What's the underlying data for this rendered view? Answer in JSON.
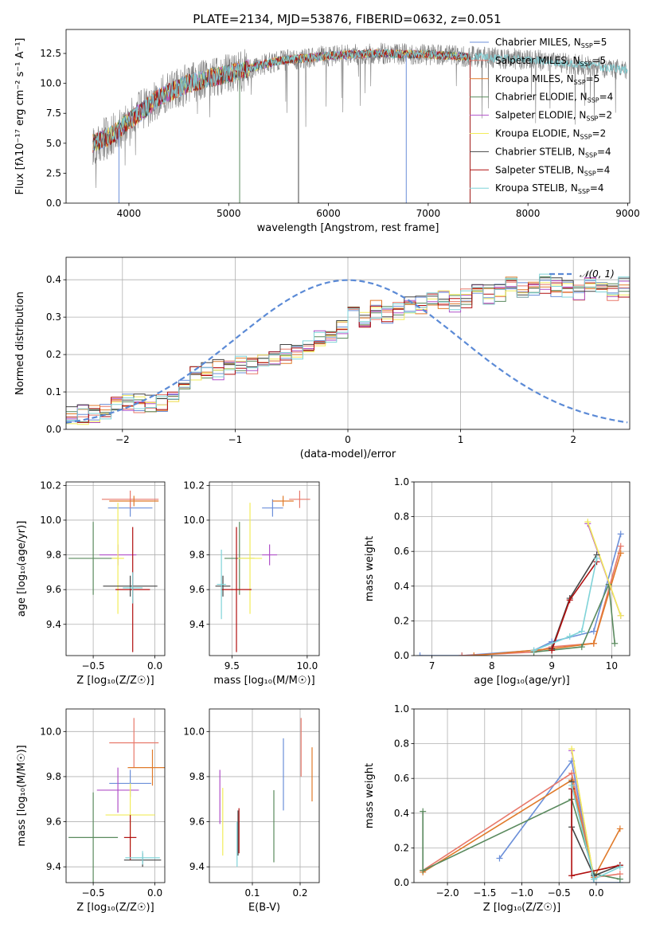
{
  "figure_title": "PLATE=2134, MJD=53876, FIBERID=0632, z=0.051",
  "colors": {
    "series": [
      "#6b8fd9",
      "#e8786a",
      "#e07a2a",
      "#5a8a5e",
      "#b050c8",
      "#f2ec5a",
      "#444444",
      "#b00e0e",
      "#7fd3d8"
    ],
    "data_spectrum": "#808080",
    "normal_curve": "#5b8ad6",
    "grid": "#b0b0b0"
  },
  "legend_series": [
    {
      "name": "Chabrier MILES, N",
      "sub": "SSP",
      "suffix": "=5"
    },
    {
      "name": "Salpeter MILES, N",
      "sub": "SSP",
      "suffix": "=5"
    },
    {
      "name": "Kroupa MILES, N",
      "sub": "SSP",
      "suffix": "=5"
    },
    {
      "name": "Chabrier ELODIE, N",
      "sub": "SSP",
      "suffix": "=4"
    },
    {
      "name": "Salpeter ELODIE, N",
      "sub": "SSP",
      "suffix": "=2"
    },
    {
      "name": "Kroupa ELODIE, N",
      "sub": "SSP",
      "suffix": "=2"
    },
    {
      "name": "Chabrier STELIB, N",
      "sub": "SSP",
      "suffix": "=4"
    },
    {
      "name": "Salpeter STELIB, N",
      "sub": "SSP",
      "suffix": "=4"
    },
    {
      "name": "Kroupa STELIB, N",
      "sub": "SSP",
      "suffix": "=4"
    }
  ],
  "chart_data": [
    {
      "id": "spectrum",
      "type": "line",
      "xlabel": "wavelength [Angstrom, rest frame]",
      "ylabel": "Flux [fλ10⁻¹⁷ erg cm⁻² s⁻¹ A⁻¹]",
      "xlim": [
        3370,
        9020
      ],
      "ylim": [
        0,
        14.5
      ],
      "xticks": [
        4000,
        5000,
        6000,
        7000,
        8000,
        9000
      ],
      "yticks": [
        0.0,
        2.5,
        5.0,
        7.5,
        10.0,
        12.5
      ],
      "grid": false,
      "legend": "right",
      "data_range_x": [
        3640,
        9000
      ],
      "model_end_x": [
        7420,
        7420,
        7420,
        7420,
        7420,
        7420,
        7420,
        7420,
        9000
      ],
      "continuum": {
        "x": [
          3640,
          3800,
          3950,
          4100,
          4300,
          4600,
          5000,
          5500,
          6000,
          6500,
          7000,
          7500,
          8000,
          8500,
          9000
        ],
        "y": [
          5.0,
          5.5,
          6.5,
          7.5,
          8.8,
          10.0,
          10.8,
          11.9,
          12.3,
          12.5,
          12.4,
          12.2,
          12.0,
          11.6,
          11.1
        ]
      }
    },
    {
      "id": "residual_histogram",
      "type": "histogram",
      "xlabel": "(data-model)/error",
      "ylabel": "Normed distribution",
      "xlim": [
        -2.5,
        2.5
      ],
      "ylim": [
        0,
        0.46
      ],
      "xticks": [
        -2,
        -1,
        0,
        1,
        2
      ],
      "yticks": [
        0.0,
        0.1,
        0.2,
        0.3,
        0.4
      ],
      "grid": true,
      "legend": "top-right",
      "reference_curve": {
        "name": "𝒩(0, 1)",
        "mean": 0,
        "sigma": 1
      },
      "bin_width": 0.1,
      "bin_start": -2.5,
      "base_counts": [
        0.035,
        0.04,
        0.04,
        0.045,
        0.06,
        0.07,
        0.07,
        0.065,
        0.07,
        0.085,
        0.13,
        0.14,
        0.155,
        0.16,
        0.16,
        0.175,
        0.175,
        0.185,
        0.18,
        0.2,
        0.21,
        0.23,
        0.24,
        0.25,
        0.27,
        0.3,
        0.29,
        0.32,
        0.31,
        0.32,
        0.335,
        0.33,
        0.34,
        0.35,
        0.34,
        0.35,
        0.37,
        0.36,
        0.37,
        0.38,
        0.37,
        0.38,
        0.39,
        0.38,
        0.38,
        0.37,
        0.38,
        0.39,
        0.37,
        0.38,
        0.37,
        0.36,
        0.35,
        0.34,
        0.35,
        0.33,
        0.32,
        0.32,
        0.31,
        0.3,
        0.29,
        0.28,
        0.25,
        0.25,
        0.24,
        0.22,
        0.21,
        0.2,
        0.18,
        0.17,
        0.15,
        0.15,
        0.14,
        0.13,
        0.12,
        0.1,
        0.09,
        0.08,
        0.08,
        0.07,
        0.06,
        0.05,
        0.045,
        0.04,
        0.04,
        0.035,
        0.035,
        0.03,
        0.03,
        0.025
      ]
    },
    {
      "id": "age_vs_Z",
      "type": "errorbar",
      "xlabel": "Z [log₁₀(Z/Z☉)]",
      "ylabel": "age  [log₁₀(age/yr)]",
      "xlim": [
        -0.72,
        0.08
      ],
      "ylim": [
        9.22,
        10.22
      ],
      "xticks": [
        -0.5,
        0.0
      ],
      "yticks": [
        9.4,
        9.6,
        9.8,
        10.0,
        10.2
      ],
      "grid": true,
      "points": [
        {
          "x": -0.2,
          "y": 10.07,
          "xerr": 0.18,
          "yerr": 0.05
        },
        {
          "x": -0.2,
          "y": 10.12,
          "xerr": 0.23,
          "yerr": 0.05
        },
        {
          "x": -0.17,
          "y": 10.11,
          "xerr": 0.2,
          "yerr": 0.03
        },
        {
          "x": -0.5,
          "y": 9.78,
          "xerr": 0.2,
          "yerr": 0.21
        },
        {
          "x": -0.3,
          "y": 9.8,
          "xerr": 0.15,
          "yerr": 0.06
        },
        {
          "x": -0.3,
          "y": 9.78,
          "xerr": 0.05,
          "yerr": 0.32
        },
        {
          "x": -0.2,
          "y": 9.62,
          "xerr": 0.22,
          "yerr": 0.06
        },
        {
          "x": -0.18,
          "y": 9.6,
          "xerr": 0.14,
          "yerr": 0.36
        },
        {
          "x": -0.18,
          "y": 9.61,
          "xerr": 0.08,
          "yerr": 0.09
        }
      ]
    },
    {
      "id": "age_vs_mass",
      "type": "errorbar",
      "xlabel": "mass [log₁₀(M/M☉)]",
      "ylabel": "",
      "xlim": [
        9.35,
        10.08
      ],
      "ylim": [
        9.22,
        10.22
      ],
      "xticks": [
        9.5,
        10.0
      ],
      "yticks": [
        9.4,
        9.6,
        9.8,
        10.0,
        10.2
      ],
      "grid": true,
      "points": [
        {
          "x": 9.77,
          "y": 10.07,
          "xerr": 0.07,
          "yerr": 0.05
        },
        {
          "x": 9.95,
          "y": 10.12,
          "xerr": 0.07,
          "yerr": 0.05
        },
        {
          "x": 9.84,
          "y": 10.11,
          "xerr": 0.07,
          "yerr": 0.03
        },
        {
          "x": 9.55,
          "y": 9.78,
          "xerr": 0.1,
          "yerr": 0.21
        },
        {
          "x": 9.75,
          "y": 9.8,
          "xerr": 0.05,
          "yerr": 0.06
        },
        {
          "x": 9.62,
          "y": 9.78,
          "xerr": 0.08,
          "yerr": 0.32
        },
        {
          "x": 9.44,
          "y": 9.62,
          "xerr": 0.05,
          "yerr": 0.06
        },
        {
          "x": 9.53,
          "y": 9.6,
          "xerr": 0.1,
          "yerr": 0.36
        },
        {
          "x": 9.43,
          "y": 9.63,
          "xerr": 0.03,
          "yerr": 0.2
        }
      ]
    },
    {
      "id": "mass_weight_vs_age",
      "type": "line",
      "xlabel": "age  [log₁₀(age/yr)]",
      "ylabel": "mass weight",
      "xlim": [
        6.7,
        10.3
      ],
      "ylim": [
        0,
        1
      ],
      "xticks": [
        7,
        8,
        9,
        10
      ],
      "yticks": [
        0.0,
        0.2,
        0.4,
        0.6,
        0.8,
        1.0
      ],
      "grid": true,
      "series": [
        {
          "x": [
            6.8,
            7.5,
            8.7,
            9.0,
            9.7,
            10.15
          ],
          "y": [
            0.0,
            0.0,
            0.03,
            0.08,
            0.14,
            0.7
          ]
        },
        {
          "x": [
            7.5,
            8.7,
            9.0,
            9.7,
            10.15
          ],
          "y": [
            0.0,
            0.02,
            0.05,
            0.07,
            0.63
          ]
        },
        {
          "x": [
            7.7,
            9.0,
            9.7,
            10.15
          ],
          "y": [
            0.0,
            0.04,
            0.07,
            0.59
          ]
        },
        {
          "x": [
            8.7,
            9.5,
            9.95,
            10.05
          ],
          "y": [
            0.02,
            0.05,
            0.41,
            0.07
          ]
        },
        {
          "x": [
            9.6,
            10.15
          ],
          "y": [
            0.76,
            0.23
          ]
        },
        {
          "x": [
            9.6,
            10.15
          ],
          "y": [
            0.77,
            0.23
          ]
        },
        {
          "x": [
            9.0,
            9.3,
            9.75
          ],
          "y": [
            0.04,
            0.33,
            0.58
          ]
        },
        {
          "x": [
            9.0,
            9.3,
            9.75
          ],
          "y": [
            0.03,
            0.32,
            0.54
          ]
        },
        {
          "x": [
            8.7,
            9.3,
            9.5,
            9.75
          ],
          "y": [
            0.03,
            0.11,
            0.14,
            0.56
          ]
        }
      ]
    },
    {
      "id": "mass_vs_Z",
      "type": "errorbar",
      "xlabel": "Z [log₁₀(Z/Z☉)]",
      "ylabel": "mass [log₁₀(M/M☉)]",
      "xlim": [
        -0.72,
        0.08
      ],
      "ylim": [
        9.33,
        10.1
      ],
      "xticks": [
        -0.5,
        0.0
      ],
      "yticks": [
        9.4,
        9.6,
        9.8,
        10.0
      ],
      "grid": true,
      "points": [
        {
          "x": -0.2,
          "y": 9.77,
          "xerr": 0.17,
          "yerr": 0.06
        },
        {
          "x": -0.17,
          "y": 9.95,
          "xerr": 0.2,
          "yerr": 0.11
        },
        {
          "x": -0.02,
          "y": 9.84,
          "xerr": 0.2,
          "yerr": 0.08
        },
        {
          "x": -0.5,
          "y": 9.53,
          "xerr": 0.2,
          "yerr": 0.2
        },
        {
          "x": -0.3,
          "y": 9.74,
          "xerr": 0.17,
          "yerr": 0.1
        },
        {
          "x": -0.2,
          "y": 9.63,
          "xerr": 0.2,
          "yerr": 0.14
        },
        {
          "x": -0.1,
          "y": 9.43,
          "xerr": 0.15,
          "yerr": 0.03
        },
        {
          "x": -0.2,
          "y": 9.53,
          "xerr": 0.05,
          "yerr": 0.1
        },
        {
          "x": -0.1,
          "y": 9.44,
          "xerr": 0.14,
          "yerr": 0.03
        }
      ]
    },
    {
      "id": "mass_vs_EBV",
      "type": "errorbar",
      "xlabel": "E(B-V)",
      "ylabel": "",
      "xlim": [
        0.01,
        0.24
      ],
      "ylim": [
        9.33,
        10.1
      ],
      "xticks": [
        0.1,
        0.2
      ],
      "yticks": [
        9.4,
        9.6,
        9.8,
        10.0
      ],
      "grid": true,
      "points": [
        {
          "x": 0.165,
          "y": 9.81,
          "xerr": 0,
          "yerr": 0.16
        },
        {
          "x": 0.202,
          "y": 9.93,
          "xerr": 0,
          "yerr": 0.13
        },
        {
          "x": 0.225,
          "y": 9.81,
          "xerr": 0,
          "yerr": 0.12
        },
        {
          "x": 0.145,
          "y": 9.58,
          "xerr": 0,
          "yerr": 0.16
        },
        {
          "x": 0.032,
          "y": 9.71,
          "xerr": 0,
          "yerr": 0.12
        },
        {
          "x": 0.038,
          "y": 9.6,
          "xerr": 0,
          "yerr": 0.15
        },
        {
          "x": 0.07,
          "y": 9.55,
          "xerr": 0,
          "yerr": 0.1
        },
        {
          "x": 0.072,
          "y": 9.56,
          "xerr": 0,
          "yerr": 0.1
        },
        {
          "x": 0.068,
          "y": 9.5,
          "xerr": 0,
          "yerr": 0.1
        }
      ]
    },
    {
      "id": "mass_weight_vs_Z",
      "type": "line",
      "xlabel": "Z [log₁₀(Z/Z☉)]",
      "ylabel": "mass weight",
      "xlim": [
        -2.45,
        0.45
      ],
      "ylim": [
        0,
        1
      ],
      "xticks": [
        -2.0,
        -1.5,
        -1.0,
        -0.5,
        0.0
      ],
      "yticks": [
        0.0,
        0.2,
        0.4,
        0.6,
        0.8,
        1.0
      ],
      "grid": true,
      "series": [
        {
          "x": [
            -1.3,
            -0.33,
            -0.03,
            0.32
          ],
          "y": [
            0.14,
            0.7,
            0.0,
            0.0
          ]
        },
        {
          "x": [
            -2.33,
            -0.33,
            -0.03,
            0.32
          ],
          "y": [
            0.07,
            0.63,
            0.03,
            0.05
          ]
        },
        {
          "x": [
            -2.33,
            -0.33,
            -0.03,
            0.32
          ],
          "y": [
            0.06,
            0.59,
            0.03,
            0.31
          ]
        },
        {
          "x": [
            -2.33,
            -2.33,
            -0.33,
            -0.03,
            0.32
          ],
          "y": [
            0.41,
            0.07,
            0.48,
            0.05,
            0.02
          ]
        },
        {
          "x": [
            -0.33,
            -0.03
          ],
          "y": [
            0.76,
            0.02
          ]
        },
        {
          "x": [
            -0.33,
            -0.03
          ],
          "y": [
            0.77,
            0.02
          ]
        },
        {
          "x": [
            -0.33,
            -0.33,
            -0.03,
            0.32
          ],
          "y": [
            0.58,
            0.32,
            0.04,
            0.1
          ]
        },
        {
          "x": [
            -0.33,
            -0.33,
            0.32
          ],
          "y": [
            0.54,
            0.04,
            0.1
          ]
        },
        {
          "x": [
            -0.33,
            -0.03,
            0.32
          ],
          "y": [
            0.56,
            0.02,
            0.09
          ]
        }
      ]
    }
  ]
}
